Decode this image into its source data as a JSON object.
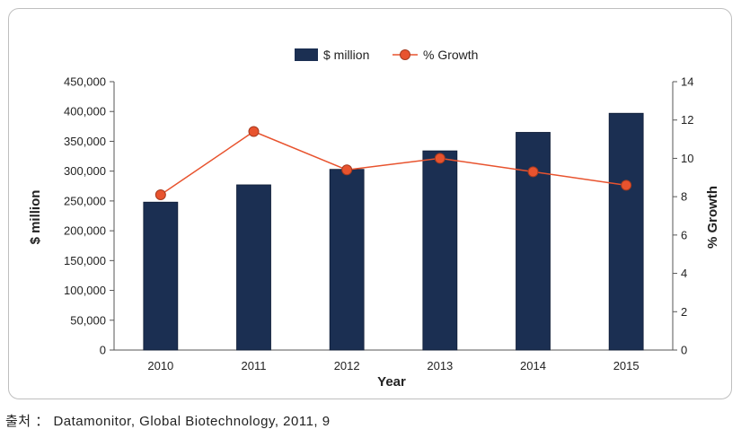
{
  "chart_data": {
    "type": "bar",
    "categories": [
      "2010",
      "2011",
      "2012",
      "2013",
      "2014",
      "2015"
    ],
    "series": [
      {
        "name": "$ million",
        "type": "bar",
        "axis": "left",
        "values": [
          248000,
          277000,
          303000,
          334000,
          365000,
          397000
        ],
        "color": "#1b2f52"
      },
      {
        "name": "% Growth",
        "type": "line",
        "axis": "right",
        "values": [
          8.1,
          11.4,
          9.4,
          10.0,
          9.3,
          8.6
        ],
        "color": "#e8532e"
      }
    ],
    "xlabel": "Year",
    "ylabel": "$ million",
    "y2label": "% Growth",
    "ylim": [
      0,
      450000
    ],
    "y2lim": [
      0,
      14
    ],
    "yticks": [
      "0",
      "50,000",
      "100,000",
      "150,000",
      "200,000",
      "250,000",
      "300,000",
      "350,000",
      "400,000",
      "450,000"
    ],
    "y2ticks": [
      "0",
      "2",
      "4",
      "6",
      "8",
      "10",
      "12",
      "14"
    ],
    "grid": false,
    "legend": "top-center"
  },
  "source_label": "출처",
  "source_sep": "：",
  "source_text": "Datamonitor, Global Biotechnology, 2011, 9"
}
